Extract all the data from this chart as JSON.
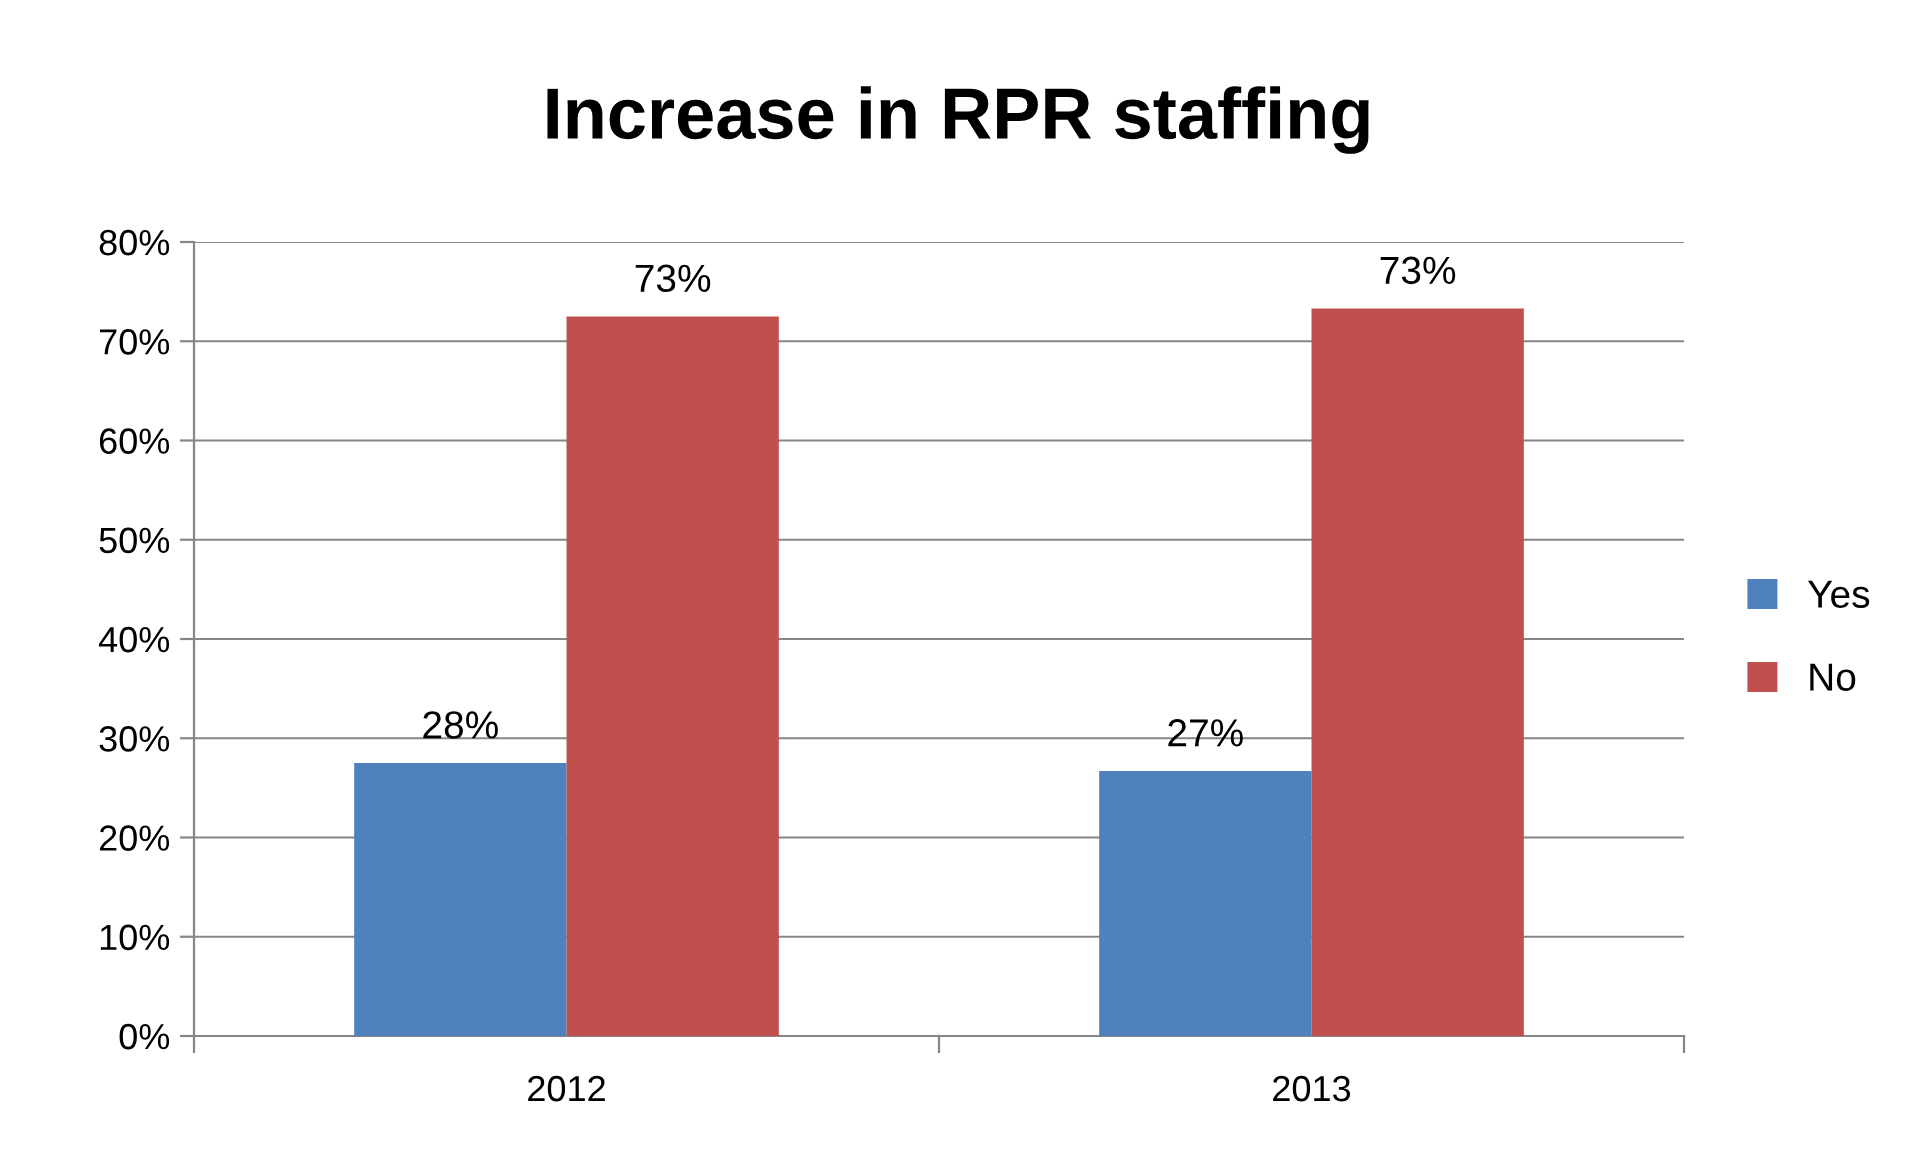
{
  "chart_data": {
    "type": "bar",
    "title": "Increase in RPR staffing",
    "categories": [
      "2012",
      "2013"
    ],
    "series": [
      {
        "name": "Yes",
        "color": "#4f81bd",
        "values": [
          27.5,
          26.7
        ],
        "value_labels": [
          "28%",
          "27%"
        ]
      },
      {
        "name": "No",
        "color": "#c0504d",
        "values": [
          72.5,
          73.3
        ],
        "value_labels": [
          "73%",
          "73%"
        ]
      }
    ],
    "ylim": [
      0,
      80
    ],
    "yticks": [
      {
        "value": 0,
        "label": "0%"
      },
      {
        "value": 10,
        "label": "10%"
      },
      {
        "value": 20,
        "label": "20%"
      },
      {
        "value": 30,
        "label": "30%"
      },
      {
        "value": 40,
        "label": "40%"
      },
      {
        "value": 50,
        "label": "50%"
      },
      {
        "value": 60,
        "label": "60%"
      },
      {
        "value": 70,
        "label": "70%"
      },
      {
        "value": 80,
        "label": "80%"
      }
    ],
    "grid": "y",
    "legend": "right"
  }
}
